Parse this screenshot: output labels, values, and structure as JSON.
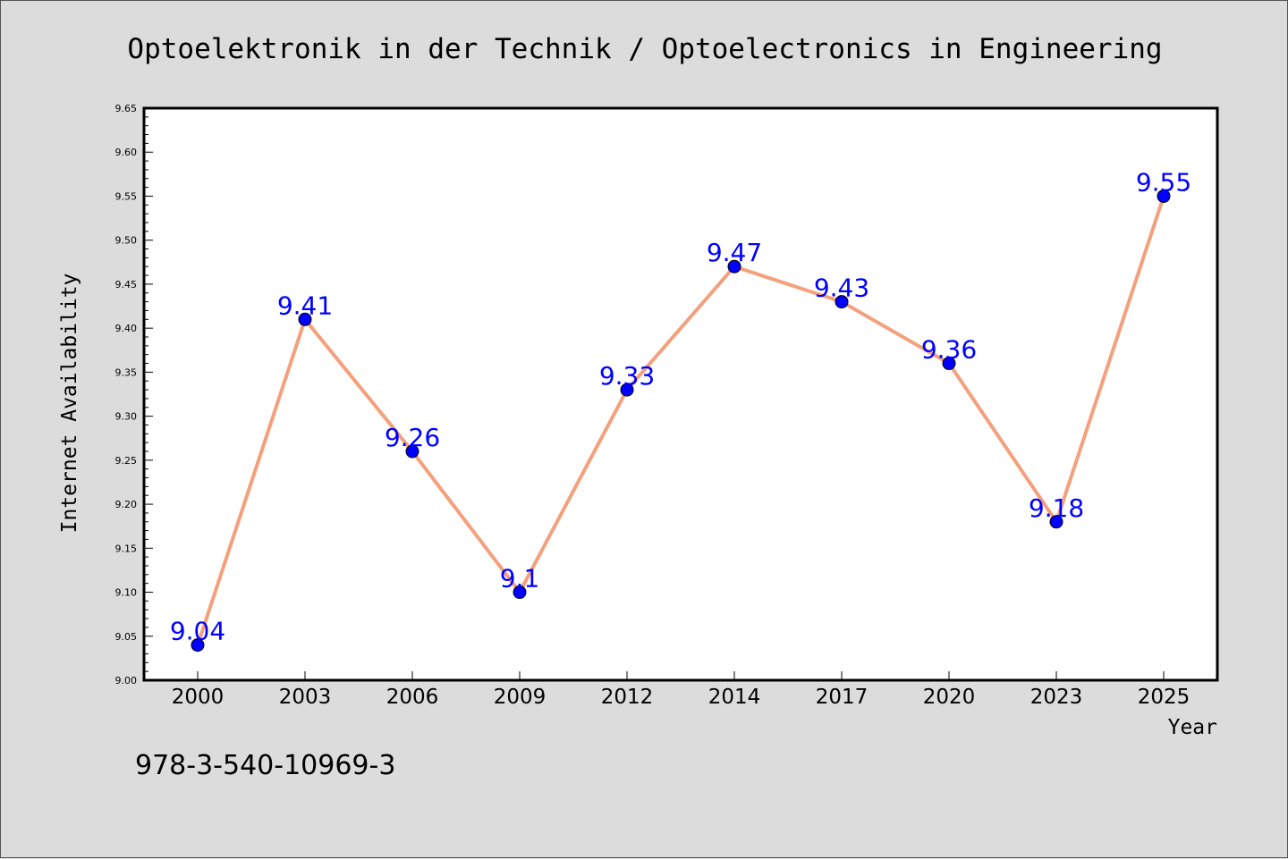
{
  "chart_data": {
    "type": "line",
    "title": "Optoelektronik in der Technik / Optoelectronics in Engineering",
    "xlabel": "Year",
    "ylabel": "Internet Availability",
    "categories": [
      "2000",
      "2003",
      "2006",
      "2009",
      "2012",
      "2014",
      "2017",
      "2020",
      "2023",
      "2025"
    ],
    "series": [
      {
        "values": [
          9.04,
          9.41,
          9.26,
          9.1,
          9.33,
          9.47,
          9.43,
          9.36,
          9.18,
          9.55
        ],
        "data_labels": [
          "9.04",
          "9.41",
          "9.26",
          "9.1",
          "9.33",
          "9.47",
          "9.43",
          "9.36",
          "9.18",
          "9.55"
        ],
        "line_color": "#f4a07c",
        "marker_color": "#0000ff"
      }
    ],
    "ylim": [
      9.0,
      9.65
    ],
    "yticks": [
      "9.00",
      "9.05",
      "9.10",
      "9.15",
      "9.20",
      "9.25",
      "9.30",
      "9.35",
      "9.40",
      "9.45",
      "9.50",
      "9.55",
      "9.60",
      "9.65"
    ],
    "grid": false,
    "legend": "none"
  },
  "footer": {
    "isbn": "978-3-540-10969-3"
  }
}
